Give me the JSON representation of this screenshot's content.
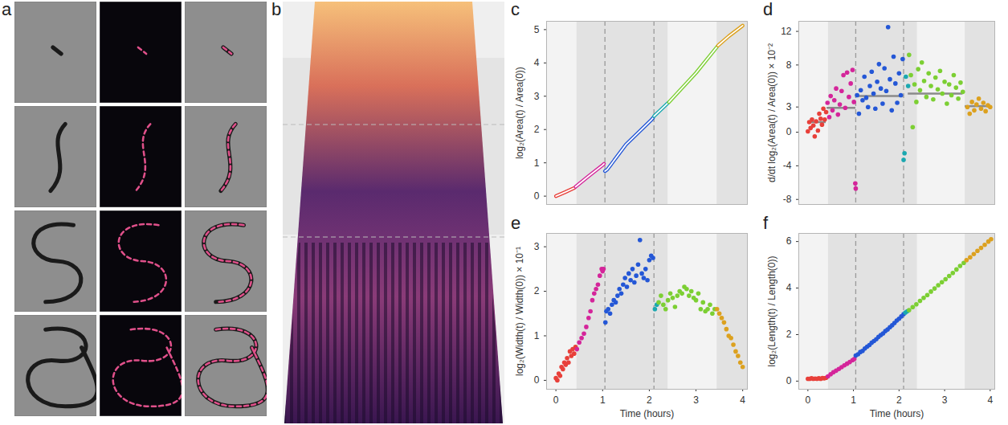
{
  "images": [
    {
      "panel": "a",
      "type": "image"
    },
    {
      "panel": "b",
      "type": "kymograph"
    }
  ],
  "chart_data": [
    {
      "panel": "c",
      "type": "line",
      "line_style": "double",
      "ylabel": "log₂(Area(t) / Area(0))",
      "xlim": [
        -0.2,
        4.1
      ],
      "ylim": [
        -0.25,
        5.25
      ],
      "yticks": [
        0,
        1,
        2,
        3,
        4,
        5
      ],
      "tick_labels": "y",
      "bands": [
        [
          0.45,
          2.4
        ],
        [
          3.45,
          4.1
        ]
      ],
      "vlines": [
        1.05,
        2.1
      ],
      "series": [
        {
          "color": "#e8403a",
          "x": [
            0,
            0.2,
            0.4
          ],
          "values": [
            0,
            0.12,
            0.25
          ]
        },
        {
          "color": "#d4259a",
          "x": [
            0.42,
            0.7,
            1.0,
            1.03
          ],
          "values": [
            0.28,
            0.6,
            0.93,
            0.97
          ]
        },
        {
          "color": "#2457d6",
          "x": [
            1.05,
            1.1,
            1.5,
            2.05,
            2.08
          ],
          "values": [
            0.75,
            0.8,
            1.55,
            2.3,
            2.35
          ]
        },
        {
          "color": "#1ba8b0",
          "x": [
            2.1,
            2.25,
            2.4
          ],
          "values": [
            2.4,
            2.6,
            2.8
          ]
        },
        {
          "color": "#7ccf33",
          "x": [
            2.42,
            3.0,
            3.45
          ],
          "values": [
            2.82,
            3.7,
            4.48
          ]
        },
        {
          "color": "#dca11f",
          "x": [
            3.47,
            3.7,
            4.0
          ],
          "values": [
            4.52,
            4.8,
            5.12
          ]
        }
      ]
    },
    {
      "panel": "d",
      "type": "scatter",
      "marker": "circle",
      "ylabel": "d/dt log₂(Area(t) / Area(0)) × 10⁻²",
      "xlim": [
        -0.2,
        4.1
      ],
      "ylim": [
        -8.6,
        13.2
      ],
      "yticks": [
        -8,
        -4,
        0,
        3,
        8,
        12
      ],
      "tick_labels": "y",
      "bands": [
        [
          0.45,
          2.4
        ],
        [
          3.45,
          4.1
        ]
      ],
      "vlines": [
        1.05,
        2.1
      ],
      "means": [
        {
          "x1": 0,
          "x2": 0.4,
          "value": 1.2
        },
        {
          "x1": 0.42,
          "x2": 1.05,
          "value": 2.9
        },
        {
          "x1": 1.05,
          "x2": 2.1,
          "value": 4.3
        },
        {
          "x1": 2.2,
          "x2": 3.4,
          "value": 4.6
        },
        {
          "x1": 3.45,
          "x2": 4.0,
          "value": 3.1
        }
      ],
      "series": [
        {
          "color": "#e8403a",
          "x": [
            0.0,
            0.03,
            0.06,
            0.09,
            0.12,
            0.15,
            0.18,
            0.22,
            0.25,
            0.28,
            0.31,
            0.34,
            0.37,
            0.4
          ],
          "values": [
            0.1,
            1.2,
            0.5,
            1.5,
            0.8,
            -0.5,
            1.3,
            0.2,
            2.2,
            1.6,
            0.9,
            2.8,
            1.5,
            2.4
          ]
        },
        {
          "color": "#d4259a",
          "x": [
            0.43,
            0.47,
            0.5,
            0.54,
            0.58,
            0.62,
            0.66,
            0.7,
            0.74,
            0.78,
            0.82,
            0.86,
            0.9,
            0.94,
            0.98,
            1.01,
            1.04,
            1.05
          ],
          "values": [
            3.5,
            1.8,
            4.3,
            2.6,
            3.8,
            5.2,
            2.1,
            3.3,
            4.9,
            6.8,
            2.9,
            7.1,
            4.2,
            5.8,
            7.4,
            3.6,
            -6.1,
            -6.7
          ]
        },
        {
          "color": "#2457d6",
          "x": [
            1.08,
            1.12,
            1.16,
            1.2,
            1.24,
            1.28,
            1.32,
            1.36,
            1.4,
            1.44,
            1.48,
            1.52,
            1.56,
            1.6,
            1.64,
            1.68,
            1.72,
            1.76,
            1.8,
            1.84,
            1.88,
            1.92,
            1.96,
            2.0,
            2.04,
            2.08
          ],
          "values": [
            4.4,
            2.2,
            5.0,
            3.8,
            6.6,
            4.1,
            3.0,
            5.5,
            7.2,
            4.6,
            2.8,
            6.0,
            8.1,
            5.2,
            3.4,
            7.6,
            4.9,
            12.5,
            6.3,
            2.6,
            9.0,
            5.8,
            3.5,
            7.0,
            4.4,
            8.7
          ]
        },
        {
          "color": "#1ba8b0",
          "x": [
            2.1,
            2.12,
            2.15,
            2.2
          ],
          "values": [
            -3.3,
            -2.5,
            6.6,
            5.5
          ]
        },
        {
          "color": "#7ccf33",
          "x": [
            2.22,
            2.26,
            2.3,
            2.34,
            2.38,
            2.42,
            2.46,
            2.5,
            2.55,
            2.6,
            2.65,
            2.7,
            2.75,
            2.8,
            2.85,
            2.9,
            2.95,
            3.0,
            3.05,
            3.1,
            3.15,
            3.2,
            3.25,
            3.3,
            3.35,
            3.4
          ],
          "values": [
            9.2,
            6.8,
            0.6,
            5.7,
            3.6,
            7.5,
            5.0,
            8.3,
            6.1,
            4.2,
            7.0,
            5.5,
            3.9,
            6.5,
            5.1,
            7.3,
            4.6,
            6.0,
            3.4,
            5.7,
            4.4,
            6.8,
            5.3,
            4.0,
            5.9,
            4.8
          ]
        },
        {
          "color": "#dca11f",
          "x": [
            3.5,
            3.55,
            3.6,
            3.65,
            3.7,
            3.75,
            3.8,
            3.85,
            3.9,
            3.95,
            4.0
          ],
          "values": [
            3.0,
            2.2,
            3.6,
            2.6,
            3.3,
            4.0,
            2.8,
            3.5,
            2.5,
            3.2,
            3.0
          ]
        }
      ]
    },
    {
      "panel": "e",
      "type": "scatter",
      "marker": "circle",
      "ylabel": "log₂(Width(t) / Width(0)) × 10⁻¹",
      "xlabel": "Time (hours)",
      "xlim": [
        -0.2,
        4.1
      ],
      "ylim": [
        -0.2,
        3.3
      ],
      "xticks": [
        0,
        1,
        2,
        3,
        4
      ],
      "yticks": [
        0,
        1,
        2,
        3
      ],
      "bands": [
        [
          0.45,
          2.4
        ],
        [
          3.45,
          4.1
        ]
      ],
      "vlines": [
        1.05,
        2.1
      ],
      "series": [
        {
          "color": "#e8403a",
          "x": [
            0,
            0.03,
            0.06,
            0.09,
            0.12,
            0.15,
            0.18,
            0.21,
            0.24,
            0.27,
            0.3,
            0.33,
            0.36,
            0.39,
            0.42
          ],
          "values": [
            0.05,
            0.0,
            0.15,
            0.1,
            0.3,
            0.25,
            0.4,
            0.35,
            0.5,
            0.4,
            0.65,
            0.55,
            0.7,
            0.6,
            0.75
          ]
        },
        {
          "color": "#d4259a",
          "x": [
            0.45,
            0.5,
            0.55,
            0.6,
            0.65,
            0.7,
            0.74,
            0.78,
            0.82,
            0.86,
            0.9,
            0.94,
            0.98,
            1.0,
            1.02
          ],
          "values": [
            0.7,
            0.85,
            0.95,
            1.05,
            1.2,
            1.4,
            1.55,
            1.8,
            1.95,
            2.05,
            2.15,
            2.35,
            2.5,
            2.45,
            2.5
          ]
        },
        {
          "color": "#2457d6",
          "x": [
            1.06,
            1.08,
            1.12,
            1.16,
            1.2,
            1.24,
            1.28,
            1.32,
            1.36,
            1.4,
            1.44,
            1.48,
            1.52,
            1.56,
            1.6,
            1.64,
            1.68,
            1.72,
            1.76,
            1.8,
            1.84,
            1.88,
            1.92,
            1.96,
            2.0,
            2.04,
            2.08
          ],
          "values": [
            1.3,
            1.55,
            1.6,
            1.5,
            1.7,
            1.8,
            1.75,
            1.9,
            2.05,
            1.95,
            2.15,
            2.3,
            2.1,
            2.4,
            2.25,
            2.5,
            2.2,
            2.35,
            2.6,
            3.15,
            2.4,
            2.3,
            2.5,
            2.25,
            2.7,
            2.8,
            2.75
          ]
        },
        {
          "color": "#1ba8b0",
          "x": [
            2.12,
            2.16
          ],
          "values": [
            1.6,
            1.7
          ]
        },
        {
          "color": "#7ccf33",
          "x": [
            2.2,
            2.25,
            2.3,
            2.35,
            2.4,
            2.45,
            2.5,
            2.55,
            2.6,
            2.65,
            2.7,
            2.75,
            2.8,
            2.85,
            2.9,
            2.95,
            3.0,
            3.05,
            3.1,
            3.15,
            3.2,
            3.25,
            3.3,
            3.35,
            3.4
          ],
          "values": [
            1.75,
            1.9,
            1.7,
            1.6,
            1.8,
            1.95,
            1.85,
            1.65,
            1.9,
            2.0,
            1.95,
            2.1,
            2.05,
            1.9,
            2.0,
            1.85,
            1.8,
            1.95,
            1.6,
            1.75,
            1.55,
            1.6,
            1.7,
            1.5,
            1.6
          ]
        },
        {
          "color": "#dca11f",
          "x": [
            3.45,
            3.5,
            3.55,
            3.6,
            3.65,
            3.7,
            3.75,
            3.8,
            3.85,
            3.9,
            3.95,
            4.0
          ],
          "values": [
            1.6,
            1.5,
            1.4,
            1.3,
            1.15,
            1.0,
            0.95,
            0.8,
            0.65,
            0.55,
            0.4,
            0.3
          ]
        }
      ]
    },
    {
      "panel": "f",
      "type": "scatter",
      "marker": "circle",
      "ylabel": "log₂(Length(t) / Length(0))",
      "xlabel": "Time (hours)",
      "xlim": [
        -0.2,
        4.1
      ],
      "ylim": [
        -0.35,
        6.35
      ],
      "xticks": [
        0,
        1,
        2,
        3,
        4
      ],
      "yticks": [
        0,
        2,
        4,
        6
      ],
      "bands": [
        [
          0.45,
          2.4
        ],
        [
          3.45,
          4.1
        ]
      ],
      "vlines": [
        1.05,
        2.1
      ],
      "series": [
        {
          "color": "#e8403a",
          "x": [
            0,
            0.04,
            0.08,
            0.12,
            0.16,
            0.2,
            0.24,
            0.28,
            0.32,
            0.36,
            0.4
          ],
          "values": [
            0.1,
            0.1,
            0.12,
            0.1,
            0.11,
            0.1,
            0.12,
            0.1,
            0.13,
            0.12,
            0.14
          ]
        },
        {
          "color": "#d4259a",
          "x": [
            0.44,
            0.5,
            0.56,
            0.62,
            0.68,
            0.74,
            0.8,
            0.86,
            0.92,
            0.98,
            1.02
          ],
          "values": [
            0.2,
            0.3,
            0.38,
            0.45,
            0.52,
            0.6,
            0.68,
            0.75,
            0.82,
            0.9,
            0.95
          ]
        },
        {
          "color": "#2457d6",
          "x": [
            1.05,
            1.1,
            1.15,
            1.2,
            1.25,
            1.3,
            1.35,
            1.4,
            1.45,
            1.5,
            1.55,
            1.6,
            1.65,
            1.7,
            1.75,
            1.8,
            1.85,
            1.9,
            1.95,
            2.0,
            2.05,
            2.1
          ],
          "values": [
            1.1,
            1.15,
            1.25,
            1.3,
            1.4,
            1.48,
            1.55,
            1.65,
            1.72,
            1.8,
            1.9,
            1.98,
            2.05,
            2.15,
            2.22,
            2.32,
            2.4,
            2.5,
            2.6,
            2.68,
            2.78,
            2.88
          ]
        },
        {
          "color": "#1ba8b0",
          "x": [
            2.14,
            2.18
          ],
          "values": [
            2.95,
            3.0
          ]
        },
        {
          "color": "#7ccf33",
          "x": [
            2.22,
            2.3,
            2.38,
            2.46,
            2.54,
            2.62,
            2.7,
            2.78,
            2.86,
            2.94,
            3.02,
            3.1,
            3.18,
            3.26,
            3.34,
            3.42
          ],
          "values": [
            3.05,
            3.18,
            3.3,
            3.45,
            3.58,
            3.7,
            3.85,
            3.98,
            4.12,
            4.25,
            4.38,
            4.52,
            4.65,
            4.8,
            4.95,
            5.08
          ]
        },
        {
          "color": "#dca11f",
          "x": [
            3.48,
            3.56,
            3.64,
            3.72,
            3.8,
            3.88,
            3.96,
            4.02
          ],
          "values": [
            5.2,
            5.32,
            5.46,
            5.6,
            5.73,
            5.86,
            6.0,
            6.1
          ]
        }
      ]
    }
  ]
}
